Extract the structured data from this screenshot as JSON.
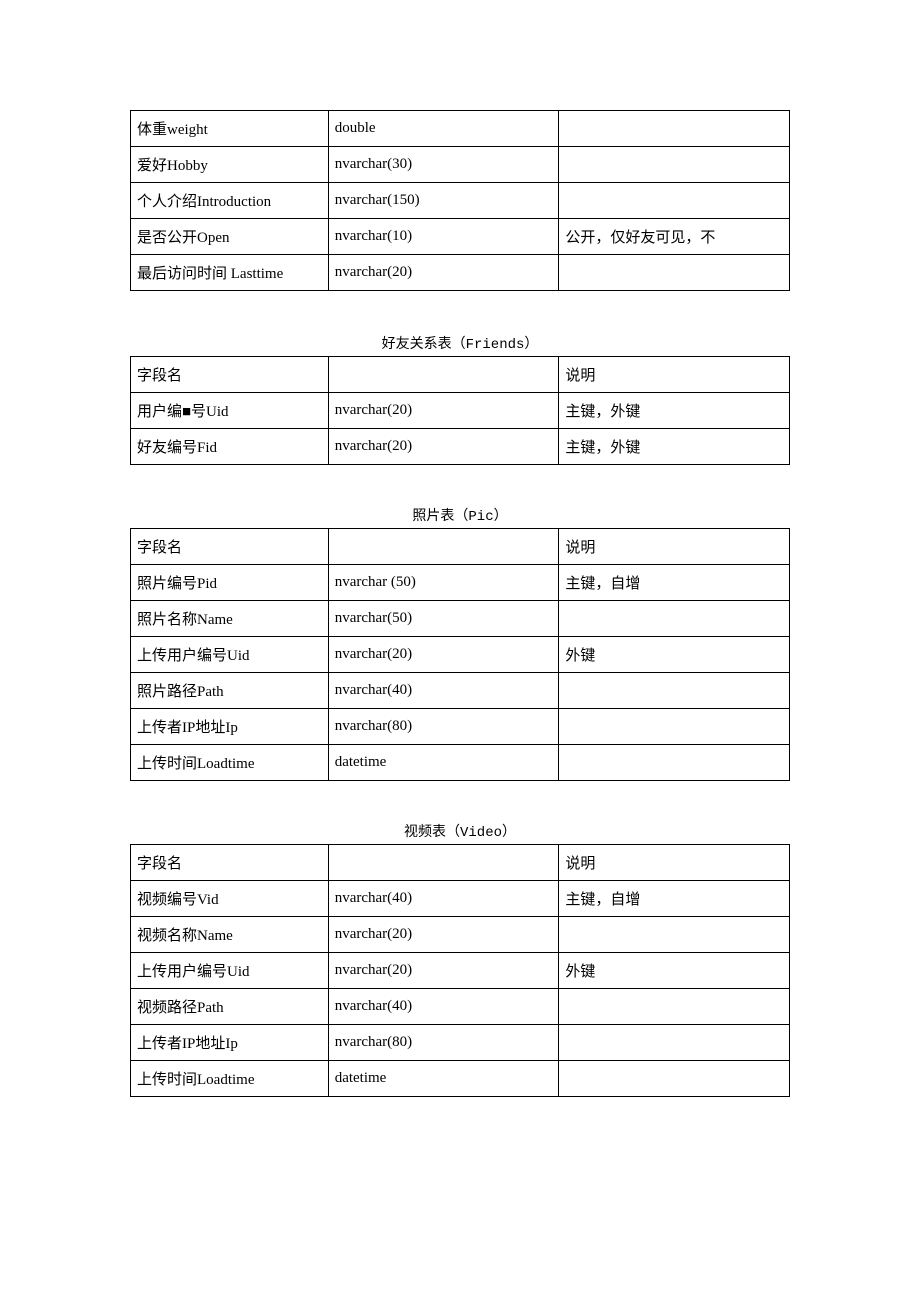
{
  "table1": {
    "rows": [
      {
        "c1": "体重weight",
        "c2": "double",
        "c3": ""
      },
      {
        "c1": "爱好Hobby",
        "c2": "nvarchar(30)",
        "c3": ""
      },
      {
        "c1": "个人介绍Introduction",
        "c2": "nvarchar(150)",
        "c3": ""
      },
      {
        "c1": "是否公开Open",
        "c2": "nvarchar(10)",
        "c3": "公开，仅好友可见，不"
      },
      {
        "c1": "最后访问时间 Lasttime",
        "c2": "nvarchar(20)",
        "c3": ""
      }
    ]
  },
  "table2": {
    "caption": "好友关系表（Friends）",
    "rows": [
      {
        "c1": "字段名",
        "c2": "",
        "c3": "说明"
      },
      {
        "c1": "用户编■号Uid",
        "c2": "nvarchar(20)",
        "c3": "主键，外键"
      },
      {
        "c1": "好友编号Fid",
        "c2": "nvarchar(20)",
        "c3": "主键，外键"
      }
    ]
  },
  "table3": {
    "caption": "照片表（Pic）",
    "rows": [
      {
        "c1": "字段名",
        "c2": "",
        "c3": "说明"
      },
      {
        "c1": "照片编号Pid",
        "c2": "nvarchar (50)",
        "c3": "主键，自增"
      },
      {
        "c1": "照片名称Name",
        "c2": "nvarchar(50)",
        "c3": ""
      },
      {
        "c1": "上传用户编号Uid",
        "c2": "nvarchar(20)",
        "c3": "外键"
      },
      {
        "c1": "照片路径Path",
        "c2": "nvarchar(40)",
        "c3": ""
      },
      {
        "c1": "上传者IP地址Ip",
        "c2": "nvarchar(80)",
        "c3": ""
      },
      {
        "c1": "上传时间Loadtime",
        "c2": "datetime",
        "c3": ""
      }
    ]
  },
  "table4": {
    "caption": "视频表（Video）",
    "rows": [
      {
        "c1": "字段名",
        "c2": "",
        "c3": "说明"
      },
      {
        "c1": "视频编号Vid",
        "c2": "nvarchar(40)",
        "c3": "主键，自增"
      },
      {
        "c1": "视频名称Name",
        "c2": "nvarchar(20)",
        "c3": ""
      },
      {
        "c1": "上传用户编号Uid",
        "c2": "nvarchar(20)",
        "c3": "外键"
      },
      {
        "c1": "视频路径Path",
        "c2": "nvarchar(40)",
        "c3": ""
      },
      {
        "c1": "上传者IP地址Ip",
        "c2": "nvarchar(80)",
        "c3": ""
      },
      {
        "c1": "上传时间Loadtime",
        "c2": "datetime",
        "c3": ""
      }
    ]
  }
}
